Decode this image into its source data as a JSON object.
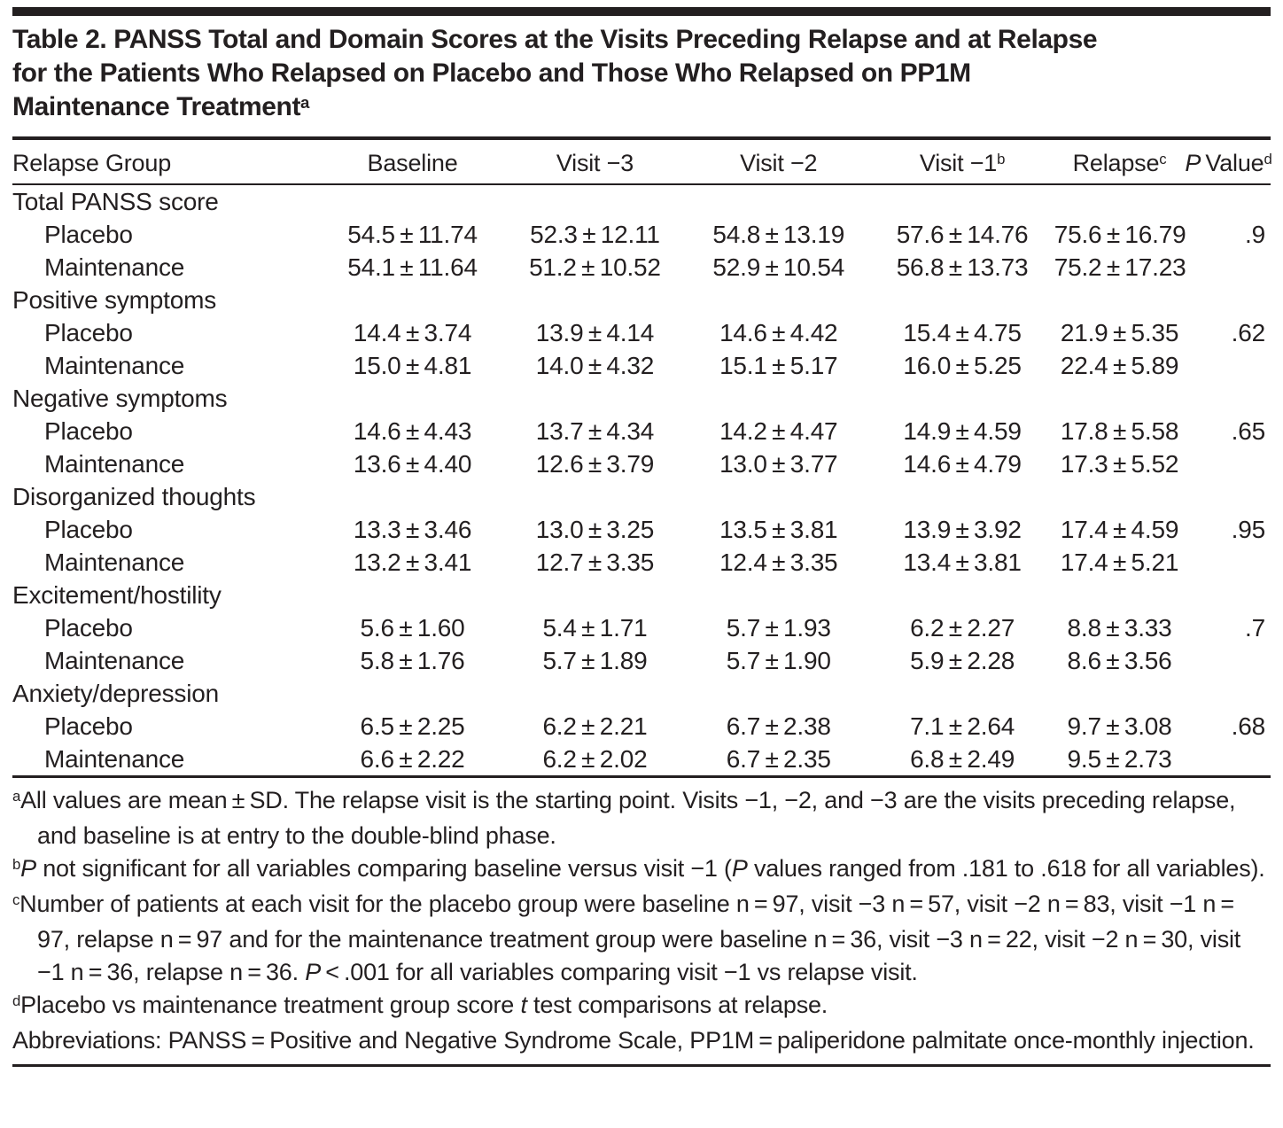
{
  "title": {
    "text": "Table 2. PANSS Total and Domain Scores at the Visits Preceding Relapse and at Relapse for the Patients Who Relapsed on Placebo and Those Who Relapsed on PP1M Maintenance Treatment",
    "sup": "a"
  },
  "table": {
    "columns": [
      {
        "label": "Relapse Group",
        "sup": ""
      },
      {
        "label": "Baseline",
        "sup": ""
      },
      {
        "label": "Visit −3",
        "sup": ""
      },
      {
        "label": "Visit −2",
        "sup": ""
      },
      {
        "label": "Visit −1",
        "sup": "b"
      },
      {
        "label": "Relapse",
        "sup": "c"
      },
      {
        "italic": "P",
        "label": " Value",
        "sup": "d"
      }
    ],
    "sections": [
      {
        "category": "Total PANSS score",
        "rows": [
          {
            "group": "Placebo",
            "values": [
              "54.5 ± 11.74",
              "52.3 ± 12.11",
              "54.8 ± 13.19",
              "57.6 ± 14.76",
              "75.6 ± 16.79"
            ],
            "p": ".9"
          },
          {
            "group": "Maintenance",
            "values": [
              "54.1 ± 11.64",
              "51.2 ± 10.52",
              "52.9 ± 10.54",
              "56.8 ± 13.73",
              "75.2 ± 17.23"
            ],
            "p": ""
          }
        ]
      },
      {
        "category": "Positive symptoms",
        "rows": [
          {
            "group": "Placebo",
            "values": [
              "14.4 ± 3.74",
              "13.9 ± 4.14",
              "14.6 ± 4.42",
              "15.4 ± 4.75",
              "21.9 ± 5.35"
            ],
            "p": ".62"
          },
          {
            "group": "Maintenance",
            "values": [
              "15.0 ± 4.81",
              "14.0 ± 4.32",
              "15.1 ± 5.17",
              "16.0 ± 5.25",
              "22.4 ± 5.89"
            ],
            "p": ""
          }
        ]
      },
      {
        "category": "Negative symptoms",
        "rows": [
          {
            "group": "Placebo",
            "values": [
              "14.6 ± 4.43",
              "13.7 ± 4.34",
              "14.2 ± 4.47",
              "14.9 ± 4.59",
              "17.8 ± 5.58"
            ],
            "p": ".65"
          },
          {
            "group": "Maintenance",
            "values": [
              "13.6 ± 4.40",
              "12.6 ± 3.79",
              "13.0 ± 3.77",
              "14.6 ± 4.79",
              "17.3 ± 5.52"
            ],
            "p": ""
          }
        ]
      },
      {
        "category": "Disorganized thoughts",
        "rows": [
          {
            "group": "Placebo",
            "values": [
              "13.3 ± 3.46",
              "13.0 ± 3.25",
              "13.5 ± 3.81",
              "13.9 ± 3.92",
              "17.4 ± 4.59"
            ],
            "p": ".95"
          },
          {
            "group": "Maintenance",
            "values": [
              "13.2 ± 3.41",
              "12.7 ± 3.35",
              "12.4 ± 3.35",
              "13.4 ± 3.81",
              "17.4 ± 5.21"
            ],
            "p": ""
          }
        ]
      },
      {
        "category": "Excitement/hostility",
        "rows": [
          {
            "group": "Placebo",
            "values": [
              "5.6 ± 1.60",
              "5.4 ± 1.71",
              "5.7 ± 1.93",
              "6.2 ± 2.27",
              "8.8 ± 3.33"
            ],
            "p": ".7"
          },
          {
            "group": "Maintenance",
            "values": [
              "5.8 ± 1.76",
              "5.7 ± 1.89",
              "5.7 ± 1.90",
              "5.9 ± 2.28",
              "8.6 ± 3.56"
            ],
            "p": ""
          }
        ]
      },
      {
        "category": "Anxiety/depression",
        "rows": [
          {
            "group": "Placebo",
            "values": [
              "6.5 ± 2.25",
              "6.2 ± 2.21",
              "6.7 ± 2.38",
              "7.1 ± 2.64",
              "9.7 ± 3.08"
            ],
            "p": ".68"
          },
          {
            "group": "Maintenance",
            "values": [
              "6.6 ± 2.22",
              "6.2 ± 2.02",
              "6.7 ± 2.35",
              "6.8 ± 2.49",
              "9.5 ± 2.73"
            ],
            "p": ""
          }
        ]
      }
    ]
  },
  "footnotes": [
    {
      "marker": "a",
      "segments": [
        {
          "t": "All values are mean ± SD. The relapse visit is the starting point. Visits −1, −2, and −3 are the visits preceding relapse, and baseline is at entry to the double-blind phase.",
          "i": false
        }
      ]
    },
    {
      "marker": "b",
      "segments": [
        {
          "t": "P",
          "i": true
        },
        {
          "t": " not significant for all variables comparing baseline versus visit −1 (",
          "i": false
        },
        {
          "t": "P",
          "i": true
        },
        {
          "t": " values ranged from .181 to .618 for all variables).",
          "i": false
        }
      ]
    },
    {
      "marker": "c",
      "segments": [
        {
          "t": "Number of patients at each visit for the placebo group were baseline n = 97, visit −3 n = 57, visit −2 n = 83, visit −1 n = 97, relapse n = 97 and for the maintenance treatment group were baseline n = 36, visit −3 n = 22, visit −2 n = 30, visit −1 n = 36, relapse n = 36. ",
          "i": false
        },
        {
          "t": "P",
          "i": true
        },
        {
          "t": " < .001 for all variables comparing visit −1 vs relapse visit.",
          "i": false
        }
      ]
    },
    {
      "marker": "d",
      "segments": [
        {
          "t": "Placebo vs maintenance treatment group score ",
          "i": false
        },
        {
          "t": "t",
          "i": true
        },
        {
          "t": " test comparisons at relapse.",
          "i": false
        }
      ]
    },
    {
      "marker": "",
      "segments": [
        {
          "t": "Abbreviations: PANSS = Positive and Negative Syndrome Scale, PP1M = paliperidone palmitate once-monthly injection.",
          "i": false
        }
      ]
    }
  ],
  "colors": {
    "text": "#231f20",
    "rule": "#231f20",
    "background": "#ffffff"
  }
}
